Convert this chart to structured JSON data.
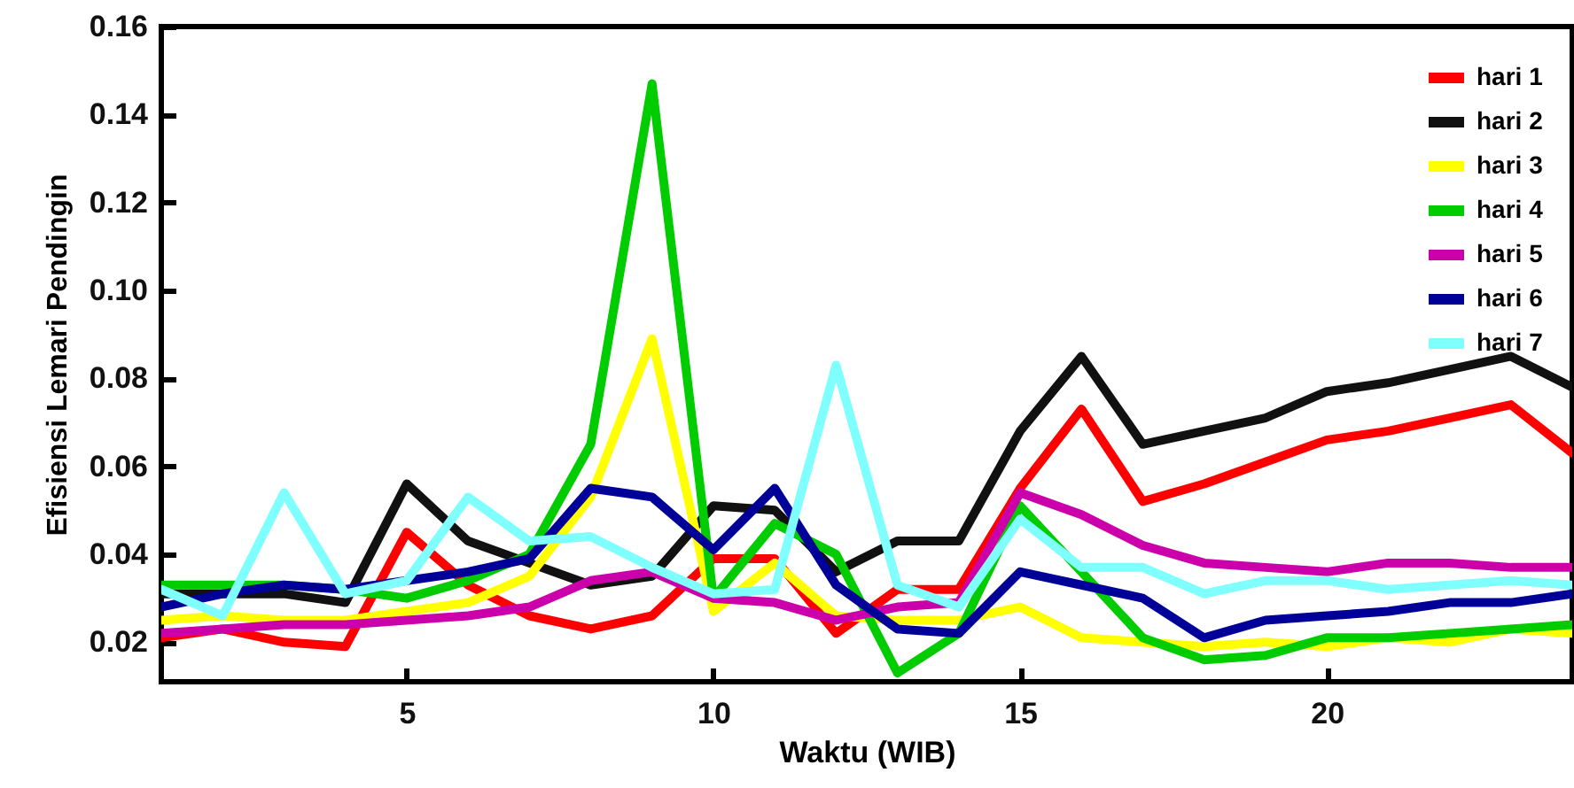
{
  "chart_data": {
    "type": "line",
    "xlabel": "Waktu  (WIB)",
    "ylabel": "Efisiensi Lemari Pendingin",
    "x": [
      1,
      2,
      3,
      4,
      5,
      6,
      7,
      8,
      9,
      10,
      11,
      12,
      13,
      14,
      15,
      16,
      17,
      18,
      19,
      20,
      21,
      22,
      23,
      24
    ],
    "xlim": [
      1,
      24
    ],
    "xticks": [
      5,
      10,
      15,
      20
    ],
    "ylim": [
      0.011,
      0.16
    ],
    "yticks": [
      0.02,
      0.04,
      0.06,
      0.08,
      {
        "value": 0.1,
        "label": "0.10"
      },
      0.12,
      0.14,
      0.16
    ],
    "grid": false,
    "legend": "top right",
    "marker": "none",
    "line_style": "solid",
    "series": [
      {
        "name": "hari 1",
        "color": "#ff0000",
        "values": [
          0.021,
          0.023,
          0.02,
          0.019,
          0.045,
          0.033,
          0.026,
          0.023,
          0.026,
          0.039,
          0.039,
          0.022,
          0.032,
          0.032,
          0.055,
          0.073,
          0.052,
          0.056,
          0.061,
          0.066,
          0.068,
          0.071,
          0.074,
          0.063
        ]
      },
      {
        "name": "hari 2",
        "color": "#111111",
        "values": [
          0.031,
          0.031,
          0.031,
          0.029,
          0.056,
          0.043,
          0.038,
          0.033,
          0.035,
          0.051,
          0.05,
          0.036,
          0.043,
          0.043,
          0.068,
          0.085,
          0.065,
          0.068,
          0.071,
          0.077,
          0.079,
          0.082,
          0.085,
          0.078
        ]
      },
      {
        "name": "hari 3",
        "color": "#ffff00",
        "values": [
          0.025,
          0.026,
          0.025,
          0.025,
          0.027,
          0.029,
          0.035,
          0.053,
          0.089,
          0.027,
          0.038,
          0.026,
          0.025,
          0.025,
          0.028,
          0.021,
          0.02,
          0.019,
          0.02,
          0.019,
          0.021,
          0.02,
          0.023,
          0.022
        ]
      },
      {
        "name": "hari 4",
        "color": "#00cc00",
        "values": [
          0.033,
          0.033,
          0.033,
          0.032,
          0.03,
          0.034,
          0.04,
          0.065,
          0.147,
          0.03,
          0.047,
          0.04,
          0.013,
          0.022,
          0.051,
          0.036,
          0.021,
          0.016,
          0.017,
          0.021,
          0.021,
          0.022,
          0.023,
          0.024
        ]
      },
      {
        "name": "hari 5",
        "color": "#cc00aa",
        "values": [
          0.022,
          0.023,
          0.024,
          0.024,
          0.025,
          0.026,
          0.028,
          0.034,
          0.036,
          0.03,
          0.029,
          0.025,
          0.028,
          0.029,
          0.054,
          0.049,
          0.042,
          0.038,
          0.037,
          0.036,
          0.038,
          0.038,
          0.037,
          0.037
        ]
      },
      {
        "name": "hari 6",
        "color": "#000099",
        "values": [
          0.028,
          0.031,
          0.033,
          0.032,
          0.034,
          0.036,
          0.039,
          0.055,
          0.053,
          0.041,
          0.055,
          0.033,
          0.023,
          0.022,
          0.036,
          0.033,
          0.03,
          0.021,
          0.025,
          0.026,
          0.027,
          0.029,
          0.029,
          0.031
        ]
      },
      {
        "name": "hari 7",
        "color": "#80ffff",
        "values": [
          0.032,
          0.026,
          0.054,
          0.031,
          0.034,
          0.053,
          0.043,
          0.044,
          0.037,
          0.031,
          0.032,
          0.083,
          0.033,
          0.028,
          0.048,
          0.037,
          0.037,
          0.031,
          0.034,
          0.034,
          0.032,
          0.033,
          0.034,
          0.033
        ]
      }
    ]
  }
}
